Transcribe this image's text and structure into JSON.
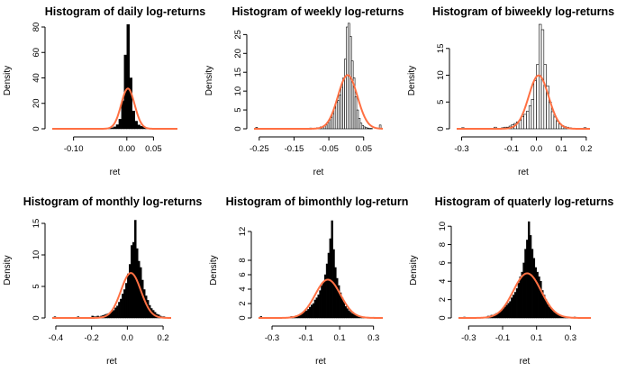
{
  "chart_data": [
    {
      "type": "bar",
      "title": "Histogram of daily log-returns",
      "xlabel": "ret",
      "ylabel": "Density",
      "xlim": [
        -0.14,
        0.095
      ],
      "ylim": [
        0,
        80
      ],
      "xticks": [
        -0.1,
        0.0,
        0.05
      ],
      "xtick_labels": [
        "-0.10",
        "0.00",
        "0.05"
      ],
      "yticks": [
        0,
        20,
        40,
        60,
        80
      ],
      "bin_width": 0.005,
      "bins": [
        -0.135,
        -0.13,
        -0.125,
        -0.12,
        -0.115,
        -0.11,
        -0.105,
        -0.1,
        -0.095,
        -0.09,
        -0.085,
        -0.08,
        -0.075,
        -0.07,
        -0.065,
        -0.06,
        -0.055,
        -0.05,
        -0.045,
        -0.04,
        -0.035,
        -0.03,
        -0.025,
        -0.02,
        -0.015,
        -0.01,
        -0.005,
        0.0,
        0.005,
        0.01,
        0.015,
        0.02,
        0.025,
        0.03,
        0.035,
        0.04,
        0.045,
        0.05,
        0.055,
        0.06,
        0.065,
        0.07,
        0.075,
        0.08,
        0.085
      ],
      "density": [
        0.2,
        0,
        0,
        0,
        0,
        0,
        0,
        0,
        0,
        0,
        0,
        0,
        0,
        0,
        0,
        0,
        0,
        0,
        0.2,
        0.3,
        0.5,
        0.8,
        1.5,
        3.2,
        7.5,
        22,
        58,
        82,
        40,
        14,
        6,
        3,
        2,
        1.3,
        0.8,
        0.5,
        0.3,
        0.2,
        0.1,
        0.1,
        0,
        0.1,
        0,
        0,
        0.1
      ],
      "hollow": false,
      "curve": {
        "mean": 0.002,
        "sd": 0.0126
      }
    },
    {
      "type": "bar",
      "title": "Histogram of weekly log-returns",
      "xlabel": "ret",
      "ylabel": "Density",
      "xlim": [
        -0.265,
        0.105
      ],
      "ylim": [
        0,
        27
      ],
      "xticks": [
        -0.25,
        -0.15,
        -0.05,
        0.05
      ],
      "xtick_labels": [
        "-0.25",
        "-0.15",
        "-0.05",
        "0.05"
      ],
      "yticks": [
        0,
        5,
        10,
        15,
        20,
        25
      ],
      "bin_width": 0.005,
      "bins": [
        -0.26,
        -0.255,
        -0.25,
        -0.245,
        -0.24,
        -0.235,
        -0.23,
        -0.225,
        -0.22,
        -0.215,
        -0.21,
        -0.205,
        -0.2,
        -0.195,
        -0.19,
        -0.185,
        -0.18,
        -0.175,
        -0.17,
        -0.165,
        -0.16,
        -0.155,
        -0.15,
        -0.145,
        -0.14,
        -0.135,
        -0.13,
        -0.125,
        -0.12,
        -0.115,
        -0.11,
        -0.105,
        -0.1,
        -0.095,
        -0.09,
        -0.085,
        -0.08,
        -0.075,
        -0.07,
        -0.065,
        -0.06,
        -0.055,
        -0.05,
        -0.045,
        -0.04,
        -0.035,
        -0.03,
        -0.025,
        -0.02,
        -0.015,
        -0.01,
        -0.005,
        0.0,
        0.005,
        0.01,
        0.015,
        0.02,
        0.025,
        0.03,
        0.035,
        0.04,
        0.045,
        0.05,
        0.055,
        0.06,
        0.065,
        0.07,
        0.075,
        0.08,
        0.085,
        0.09,
        0.095
      ],
      "density": [
        0.4,
        0,
        0,
        0,
        0,
        0,
        0,
        0,
        0,
        0,
        0,
        0,
        0,
        0,
        0,
        0,
        0,
        0,
        0,
        0,
        0,
        0,
        0,
        0,
        0,
        0,
        0,
        0,
        0,
        0,
        0,
        0.2,
        0,
        0,
        0,
        0.3,
        0.2,
        0.5,
        0.4,
        0.8,
        1.0,
        1.6,
        2.4,
        3.0,
        4.0,
        5.5,
        7.0,
        7.5,
        9.0,
        11.0,
        13.5,
        18.5,
        27,
        28,
        24.5,
        18,
        13.5,
        8.5,
        5.0,
        2.8,
        1.5,
        0.9,
        0.5,
        0.3,
        0.2,
        0.1,
        0.1,
        0,
        0,
        0,
        0,
        1.0
      ],
      "hollow": true,
      "curve": {
        "mean": 0.004,
        "sd": 0.028
      }
    },
    {
      "type": "bar",
      "title": "Histogram of biweekly log-returns",
      "xlabel": "ret",
      "ylabel": "Density",
      "xlim": [
        -0.32,
        0.215
      ],
      "ylim": [
        0,
        19
      ],
      "xticks": [
        -0.3,
        -0.1,
        0.0,
        0.1,
        0.2
      ],
      "xtick_labels": [
        "-0.3",
        "-0.1",
        "0.0",
        "0.1",
        "0.2"
      ],
      "yticks": [
        0,
        5,
        10,
        15
      ],
      "bin_width": 0.01,
      "bins": [
        -0.3,
        -0.29,
        -0.28,
        -0.27,
        -0.26,
        -0.25,
        -0.24,
        -0.23,
        -0.22,
        -0.21,
        -0.2,
        -0.19,
        -0.18,
        -0.17,
        -0.16,
        -0.15,
        -0.14,
        -0.13,
        -0.12,
        -0.11,
        -0.1,
        -0.09,
        -0.08,
        -0.07,
        -0.06,
        -0.05,
        -0.04,
        -0.03,
        -0.02,
        -0.01,
        0.0,
        0.01,
        0.02,
        0.03,
        0.04,
        0.05,
        0.06,
        0.07,
        0.08,
        0.09,
        0.1,
        0.11,
        0.12,
        0.13,
        0.14,
        0.15,
        0.16,
        0.17,
        0.18,
        0.19
      ],
      "density": [
        0.2,
        0,
        0,
        0,
        0,
        0,
        0,
        0,
        0,
        0,
        0,
        0,
        0,
        0.3,
        0,
        0,
        0.2,
        0.3,
        0.3,
        0.5,
        0.8,
        1.0,
        1.3,
        1.6,
        2.3,
        2.7,
        3.3,
        4.3,
        5.5,
        9.0,
        12.0,
        19.5,
        18.5,
        12.0,
        8.0,
        5.0,
        3.2,
        2.2,
        1.4,
        0.9,
        0.6,
        0.4,
        0.3,
        0.2,
        0.1,
        0.1,
        0.1,
        0,
        0,
        0.2
      ],
      "hollow": true,
      "curve": {
        "mean": 0.009,
        "sd": 0.04
      }
    },
    {
      "type": "bar",
      "title": "Histogram of monthly log-returns",
      "xlabel": "ret",
      "ylabel": "Density",
      "xlim": [
        -0.42,
        0.245
      ],
      "ylim": [
        0,
        16
      ],
      "xticks": [
        -0.4,
        -0.2,
        0.0,
        0.2
      ],
      "xtick_labels": [
        "-0.4",
        "-0.2",
        "0.0",
        "0.2"
      ],
      "yticks": [
        0,
        5,
        10,
        15
      ],
      "bin_width": 0.01,
      "bins": [
        -0.41,
        -0.4,
        -0.39,
        -0.38,
        -0.37,
        -0.36,
        -0.35,
        -0.34,
        -0.33,
        -0.32,
        -0.31,
        -0.3,
        -0.29,
        -0.28,
        -0.27,
        -0.26,
        -0.25,
        -0.24,
        -0.23,
        -0.22,
        -0.21,
        -0.2,
        -0.19,
        -0.18,
        -0.17,
        -0.16,
        -0.15,
        -0.14,
        -0.13,
        -0.12,
        -0.11,
        -0.1,
        -0.09,
        -0.08,
        -0.07,
        -0.06,
        -0.05,
        -0.04,
        -0.03,
        -0.02,
        -0.01,
        0.0,
        0.01,
        0.02,
        0.03,
        0.04,
        0.05,
        0.06,
        0.07,
        0.08,
        0.09,
        0.1,
        0.11,
        0.12,
        0.13,
        0.14,
        0.15,
        0.16,
        0.17,
        0.18,
        0.19,
        0.2,
        0.21,
        0.22
      ],
      "density": [
        0.2,
        0,
        0,
        0,
        0,
        0,
        0,
        0,
        0,
        0,
        0,
        0,
        0,
        0.2,
        0,
        0,
        0,
        0,
        0,
        0,
        0,
        0.3,
        0.2,
        0.2,
        0.3,
        0.2,
        0.3,
        0.4,
        0.5,
        0.6,
        0.7,
        0.8,
        1.0,
        1.2,
        1.6,
        1.9,
        2.5,
        3.0,
        3.8,
        4.5,
        5.5,
        7.0,
        8.5,
        11.5,
        12.0,
        15.5,
        11.0,
        9.0,
        8.0,
        6.0,
        4.5,
        3.5,
        2.8,
        2.0,
        1.5,
        1.2,
        0.9,
        0.6,
        0.5,
        0.3,
        0.2,
        0.2,
        0.1,
        0.1
      ],
      "hollow": false,
      "curve": {
        "mean": 0.02,
        "sd": 0.056
      }
    },
    {
      "type": "bar",
      "title": "Histogram of bimonthly log-return",
      "xlabel": "ret",
      "ylabel": "Density",
      "xlim": [
        -0.38,
        0.355
      ],
      "ylim": [
        0,
        14
      ],
      "xticks": [
        -0.3,
        -0.1,
        0.1,
        0.3
      ],
      "xtick_labels": [
        "-0.3",
        "-0.1",
        "0.1",
        "0.3"
      ],
      "yticks": [
        0,
        2,
        4,
        6,
        8,
        12
      ],
      "bin_width": 0.01,
      "bins": [
        -0.37,
        -0.36,
        -0.35,
        -0.34,
        -0.33,
        -0.32,
        -0.31,
        -0.3,
        -0.29,
        -0.28,
        -0.27,
        -0.26,
        -0.25,
        -0.24,
        -0.23,
        -0.22,
        -0.21,
        -0.2,
        -0.19,
        -0.18,
        -0.17,
        -0.16,
        -0.15,
        -0.14,
        -0.13,
        -0.12,
        -0.11,
        -0.1,
        -0.09,
        -0.08,
        -0.07,
        -0.06,
        -0.05,
        -0.04,
        -0.03,
        -0.02,
        -0.01,
        0.0,
        0.01,
        0.02,
        0.03,
        0.04,
        0.05,
        0.06,
        0.07,
        0.08,
        0.09,
        0.1,
        0.11,
        0.12,
        0.13,
        0.14,
        0.15,
        0.16,
        0.17,
        0.18,
        0.19,
        0.2,
        0.21,
        0.22,
        0.23,
        0.24,
        0.25,
        0.26,
        0.27,
        0.28,
        0.29,
        0.3,
        0.31,
        0.32,
        0.33,
        0.34
      ],
      "density": [
        0.2,
        0,
        0,
        0,
        0,
        0,
        0,
        0,
        0,
        0,
        0,
        0,
        0,
        0,
        0,
        0,
        0,
        0.1,
        0.2,
        0.1,
        0.2,
        0.3,
        0.3,
        0.4,
        0.6,
        0.8,
        1.0,
        1.0,
        1.2,
        1.5,
        1.8,
        2.0,
        2.5,
        2.8,
        3.2,
        3.8,
        4.5,
        5.0,
        6.0,
        7.5,
        9.0,
        11.0,
        13.5,
        9.5,
        7.0,
        5.5,
        4.5,
        3.5,
        2.8,
        2.2,
        1.6,
        1.3,
        1.0,
        0.8,
        0.6,
        0.5,
        0.4,
        0.3,
        0.2,
        0.2,
        0.1,
        0.1,
        0,
        0.1,
        0,
        0,
        0,
        0.1,
        0,
        0,
        0,
        0
      ],
      "hollow": false,
      "curve": {
        "mean": 0.03,
        "sd": 0.075
      }
    },
    {
      "type": "bar",
      "title": "Histogram of quaterly log-returns",
      "xlabel": "ret",
      "ylabel": "Density",
      "xlim": [
        -0.36,
        0.42
      ],
      "ylim": [
        0,
        11
      ],
      "xticks": [
        -0.3,
        -0.1,
        0.1,
        0.3
      ],
      "xtick_labels": [
        "-0.3",
        "-0.1",
        "0.1",
        "0.3"
      ],
      "yticks": [
        0,
        2,
        4,
        6,
        8,
        10
      ],
      "bin_width": 0.01,
      "bins": [
        -0.33,
        -0.32,
        -0.31,
        -0.3,
        -0.29,
        -0.28,
        -0.27,
        -0.26,
        -0.25,
        -0.24,
        -0.23,
        -0.22,
        -0.21,
        -0.2,
        -0.19,
        -0.18,
        -0.17,
        -0.16,
        -0.15,
        -0.14,
        -0.13,
        -0.12,
        -0.11,
        -0.1,
        -0.09,
        -0.08,
        -0.07,
        -0.06,
        -0.05,
        -0.04,
        -0.03,
        -0.02,
        -0.01,
        0.0,
        0.01,
        0.02,
        0.03,
        0.04,
        0.05,
        0.06,
        0.07,
        0.08,
        0.09,
        0.1,
        0.11,
        0.12,
        0.13,
        0.14,
        0.15,
        0.16,
        0.17,
        0.18,
        0.19,
        0.2,
        0.21,
        0.22,
        0.23,
        0.24,
        0.25,
        0.26,
        0.27,
        0.28,
        0.29,
        0.3,
        0.31,
        0.32,
        0.33,
        0.34,
        0.35,
        0.36,
        0.37
      ],
      "density": [
        0.1,
        0,
        0,
        0,
        0,
        0,
        0,
        0,
        0,
        0,
        0,
        0,
        0,
        0.1,
        0.2,
        0.2,
        0.3,
        0.3,
        0.4,
        0.5,
        0.5,
        0.7,
        0.8,
        1.0,
        1.2,
        1.4,
        1.6,
        1.8,
        2.2,
        2.5,
        2.8,
        3.2,
        3.8,
        4.5,
        5.0,
        6.0,
        7.5,
        8.5,
        10.5,
        9.0,
        7.5,
        6.5,
        5.5,
        5.0,
        4.5,
        4.0,
        3.0,
        2.5,
        2.0,
        1.5,
        1.2,
        1.0,
        0.8,
        0.6,
        0.5,
        0.4,
        0.3,
        0.2,
        0.2,
        0.1,
        0.1,
        0.1,
        0,
        0,
        0,
        0.1,
        0,
        0,
        0,
        0,
        0
      ],
      "hollow": false,
      "curve": {
        "mean": 0.045,
        "sd": 0.082
      }
    }
  ],
  "colors": {
    "bar": "#000000",
    "curve": "#ff7043",
    "background": "#ffffff"
  }
}
